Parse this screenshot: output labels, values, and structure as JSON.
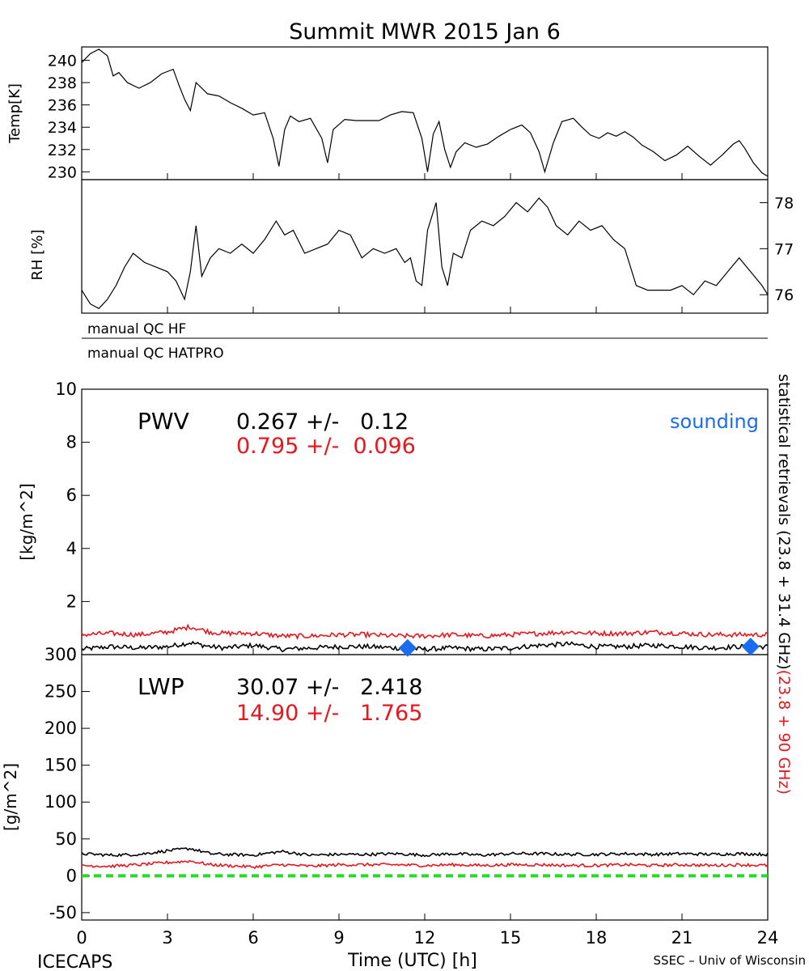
{
  "title": "Summit MWR 2015 Jan  6",
  "colors": {
    "black": "#000000",
    "red": "#e8161d",
    "blue": "#1a6cf0",
    "green": "#22dd22"
  },
  "qc_labels": [
    "manual QC HF",
    "manual QC HATPRO"
  ],
  "footer": {
    "left": "ICECAPS",
    "right": "SSEC – Univ of Wisconsin"
  },
  "side_label": {
    "black": "statistical retrievals (23.8 + 31.4 GHz)",
    "red": "(23.8 + 90 GHz)"
  },
  "chart_data": [
    {
      "type": "line",
      "name": "temp",
      "ylabel": "Temp[K]",
      "xlim": [
        0,
        24
      ],
      "ylim": [
        229.3,
        241.2
      ],
      "yticks": [
        230,
        232,
        234,
        236,
        238,
        240
      ],
      "series": [
        {
          "color": "#000000",
          "x": [
            0,
            0.3,
            0.6,
            0.9,
            1.1,
            1.3,
            1.6,
            2.0,
            2.4,
            2.8,
            3.2,
            3.4,
            3.6,
            3.8,
            4.0,
            4.4,
            4.8,
            5.2,
            5.6,
            6.0,
            6.4,
            6.7,
            6.9,
            7.1,
            7.3,
            7.6,
            8.0,
            8.4,
            8.6,
            8.8,
            9.2,
            9.6,
            10.0,
            10.4,
            10.8,
            11.2,
            11.6,
            11.9,
            12.1,
            12.3,
            12.5,
            12.7,
            12.9,
            13.1,
            13.4,
            13.8,
            14.2,
            14.6,
            15.0,
            15.4,
            15.7,
            16.0,
            16.2,
            16.5,
            16.8,
            17.2,
            17.5,
            17.8,
            18.1,
            18.4,
            18.7,
            19.0,
            19.3,
            19.6,
            20.0,
            20.4,
            20.8,
            21.2,
            21.6,
            22.0,
            22.4,
            22.8,
            23.0,
            23.2,
            23.5,
            23.8,
            24
          ],
          "y": [
            239.8,
            240.6,
            241.0,
            240.4,
            238.6,
            238.9,
            238.0,
            237.5,
            238.0,
            238.8,
            239.2,
            237.8,
            236.5,
            235.5,
            238.0,
            237.0,
            236.8,
            236.2,
            235.7,
            235.1,
            235.3,
            233.0,
            230.5,
            233.8,
            235.0,
            234.5,
            234.8,
            233.0,
            230.8,
            233.8,
            234.7,
            234.6,
            234.6,
            234.6,
            235.1,
            235.4,
            235.3,
            233.0,
            230.0,
            233.4,
            234.5,
            232.0,
            230.4,
            231.8,
            232.6,
            232.2,
            232.5,
            233.2,
            233.8,
            234.2,
            233.5,
            231.8,
            230.0,
            232.6,
            234.5,
            234.8,
            234.0,
            233.3,
            233.0,
            233.5,
            233.2,
            233.6,
            233.1,
            232.4,
            231.8,
            231.0,
            231.5,
            232.3,
            231.4,
            230.6,
            231.5,
            232.5,
            232.8,
            232.1,
            230.8,
            229.9,
            229.6
          ]
        }
      ]
    },
    {
      "type": "line",
      "name": "rh",
      "ylabel": "RH [%]",
      "xlim": [
        0,
        24
      ],
      "ylim": [
        75.6,
        78.5
      ],
      "yticks": [
        76,
        77,
        78
      ],
      "series": [
        {
          "color": "#000000",
          "x": [
            0,
            0.3,
            0.6,
            0.9,
            1.2,
            1.5,
            1.8,
            2.2,
            2.6,
            3.0,
            3.3,
            3.6,
            3.8,
            4.0,
            4.2,
            4.5,
            4.8,
            5.2,
            5.6,
            6.0,
            6.4,
            6.8,
            7.1,
            7.4,
            7.8,
            8.2,
            8.6,
            9.0,
            9.4,
            9.8,
            10.2,
            10.6,
            11.0,
            11.3,
            11.5,
            11.7,
            11.9,
            12.1,
            12.4,
            12.6,
            12.8,
            13.0,
            13.3,
            13.6,
            14.0,
            14.4,
            14.8,
            15.2,
            15.6,
            16.0,
            16.3,
            16.6,
            17.0,
            17.4,
            17.8,
            18.2,
            18.6,
            19.0,
            19.4,
            19.8,
            20.2,
            20.6,
            21.0,
            21.4,
            21.8,
            22.2,
            22.6,
            23.0,
            23.4,
            23.8,
            24
          ],
          "y": [
            76.1,
            75.8,
            75.7,
            75.9,
            76.2,
            76.6,
            76.9,
            76.7,
            76.6,
            76.5,
            76.3,
            75.9,
            76.5,
            77.5,
            76.4,
            76.8,
            77.0,
            76.9,
            77.1,
            76.9,
            77.2,
            77.6,
            77.3,
            77.4,
            76.9,
            77.0,
            77.1,
            77.4,
            77.3,
            76.8,
            77.0,
            76.9,
            77.0,
            76.7,
            76.8,
            76.3,
            76.2,
            77.4,
            78.0,
            76.6,
            76.2,
            76.9,
            76.8,
            77.4,
            77.6,
            77.5,
            77.7,
            78.0,
            77.8,
            78.1,
            77.9,
            77.5,
            77.3,
            77.6,
            77.4,
            77.5,
            77.2,
            77.0,
            76.2,
            76.1,
            76.1,
            76.1,
            76.2,
            76.0,
            76.3,
            76.2,
            76.5,
            76.8,
            76.5,
            76.2,
            76.0
          ]
        }
      ]
    },
    {
      "type": "line",
      "name": "pwv",
      "label": "PWV",
      "ylabel": "[kg/m^2]",
      "xlim": [
        0,
        24
      ],
      "ylim": [
        0,
        10
      ],
      "yticks": [
        0,
        2,
        4,
        6,
        8,
        10
      ],
      "stats": [
        {
          "text": "0.267 +/-   0.12",
          "color": "#000000"
        },
        {
          "text": "0.795 +/-  0.096",
          "color": "#e8161d"
        }
      ],
      "legend_text": "sounding",
      "series": [
        {
          "color": "#000000",
          "x": [
            0,
            1,
            2,
            3,
            3.8,
            4.5,
            5,
            6,
            7,
            8,
            9,
            10,
            11,
            12,
            13,
            14,
            15,
            16,
            17,
            18,
            19,
            20,
            21,
            22,
            23,
            24
          ],
          "y": [
            0.2,
            0.3,
            0.25,
            0.3,
            0.45,
            0.3,
            0.25,
            0.35,
            0.2,
            0.25,
            0.3,
            0.3,
            0.25,
            0.2,
            0.25,
            0.2,
            0.25,
            0.35,
            0.4,
            0.3,
            0.3,
            0.35,
            0.3,
            0.25,
            0.3,
            0.3
          ]
        },
        {
          "color": "#e8161d",
          "x": [
            0,
            1,
            2,
            3,
            3.8,
            4.5,
            5,
            6,
            7,
            8,
            9,
            10,
            11,
            12,
            13,
            14,
            15,
            16,
            17,
            18,
            19,
            20,
            21,
            22,
            23,
            24
          ],
          "y": [
            0.75,
            0.8,
            0.75,
            0.85,
            1.05,
            0.85,
            0.8,
            0.8,
            0.7,
            0.7,
            0.75,
            0.75,
            0.7,
            0.7,
            0.75,
            0.7,
            0.75,
            0.8,
            0.85,
            0.8,
            0.8,
            0.85,
            0.8,
            0.75,
            0.75,
            0.75
          ]
        },
        {
          "type": "scatter",
          "color": "#1a6cf0",
          "x": [
            11.4,
            23.4
          ],
          "y": [
            0.25,
            0.3
          ]
        }
      ]
    },
    {
      "type": "line",
      "name": "lwp",
      "label": "LWP",
      "ylabel": "[g/m^2]",
      "xlabel": "Time (UTC) [h]",
      "xlim": [
        0,
        24
      ],
      "ylim": [
        -60,
        300
      ],
      "yticks": [
        -50,
        0,
        50,
        100,
        150,
        200,
        250,
        300
      ],
      "xticks": [
        0,
        3,
        6,
        9,
        12,
        15,
        18,
        21,
        24
      ],
      "stats": [
        {
          "text": "30.07 +/-   2.418",
          "color": "#000000"
        },
        {
          "text": "14.90 +/-   1.765",
          "color": "#e8161d"
        }
      ],
      "series": [
        {
          "color": "#000000",
          "x": [
            0,
            1,
            2,
            3,
            3.8,
            4.5,
            5,
            6,
            7,
            8,
            9,
            10,
            11,
            12,
            13,
            14,
            15,
            16,
            17,
            18,
            19,
            20,
            21,
            22,
            23,
            24
          ],
          "y": [
            30,
            28,
            29,
            34,
            37,
            30,
            29,
            28,
            33,
            28,
            29,
            29,
            30,
            28,
            30,
            28,
            30,
            30,
            29,
            29,
            30,
            29,
            30,
            29,
            30,
            29
          ]
        },
        {
          "color": "#e8161d",
          "x": [
            0,
            1,
            2,
            3,
            3.8,
            4.5,
            5,
            6,
            7,
            8,
            9,
            10,
            11,
            12,
            13,
            14,
            15,
            16,
            17,
            18,
            19,
            20,
            21,
            22,
            23,
            24
          ],
          "y": [
            14,
            13,
            15,
            18,
            20,
            15,
            14,
            12,
            15,
            13,
            15,
            15,
            15,
            14,
            15,
            14,
            15,
            15,
            14,
            14,
            15,
            14,
            15,
            14,
            15,
            14
          ]
        },
        {
          "color": "#22dd22",
          "dashed": true,
          "x": [
            0,
            24
          ],
          "y": [
            0,
            0
          ]
        }
      ]
    }
  ]
}
